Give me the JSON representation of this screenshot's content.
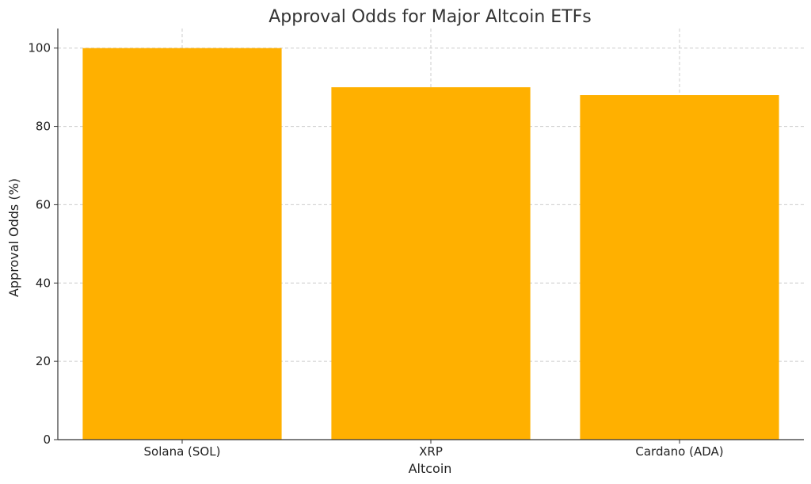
{
  "chart_data": {
    "type": "bar",
    "title": "Approval Odds for Major Altcoin ETFs",
    "xlabel": "Altcoin",
    "ylabel": "Approval Odds (%)",
    "categories": [
      "Solana (SOL)",
      "XRP",
      "Cardano (ADA)"
    ],
    "values": [
      100,
      90,
      88
    ],
    "ylim": [
      0,
      105
    ],
    "yticks": [
      0,
      20,
      40,
      60,
      80,
      100
    ],
    "grid": true,
    "bar_color": "#FFB000"
  }
}
